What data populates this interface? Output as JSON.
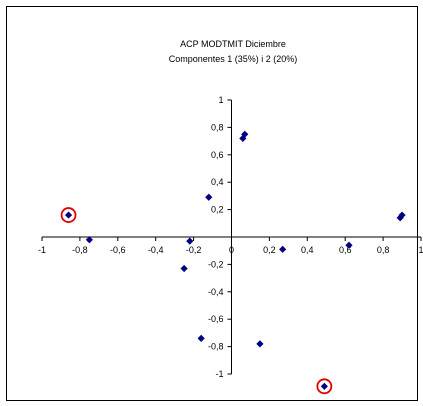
{
  "chart_data": {
    "type": "scatter",
    "title": "ACP MODTMIT Diciembre",
    "subtitle": "Componentes 1 (35%) i 2 (20%)",
    "xlabel": "",
    "ylabel": "",
    "xlim": [
      -1,
      1
    ],
    "ylim": [
      -1,
      1
    ],
    "x_ticks": [
      "-1",
      "-0,8",
      "-0,6",
      "-0,4",
      "-0,2",
      "0",
      "0,2",
      "0,4",
      "0,6",
      "0,8",
      "1"
    ],
    "y_ticks": [
      "-1",
      "-0,8",
      "-0,6",
      "-0,4",
      "-0,2",
      "0,2",
      "0,4",
      "0,6",
      "0,8",
      "1"
    ],
    "grid": false,
    "legend": "none",
    "marker_color": "#000080",
    "highlight_color": "#e00000",
    "points": [
      {
        "x": -0.86,
        "y": 0.16,
        "highlighted": true
      },
      {
        "x": -0.75,
        "y": -0.02,
        "highlighted": false
      },
      {
        "x": -0.25,
        "y": -0.23,
        "highlighted": false
      },
      {
        "x": -0.22,
        "y": -0.03,
        "highlighted": false
      },
      {
        "x": -0.16,
        "y": -0.74,
        "highlighted": false
      },
      {
        "x": -0.12,
        "y": 0.29,
        "highlighted": false
      },
      {
        "x": 0.06,
        "y": 0.72,
        "highlighted": false
      },
      {
        "x": 0.07,
        "y": 0.75,
        "highlighted": false
      },
      {
        "x": 0.15,
        "y": -0.78,
        "highlighted": false
      },
      {
        "x": 0.27,
        "y": -0.09,
        "highlighted": false
      },
      {
        "x": 0.49,
        "y": -1.09,
        "highlighted": true
      },
      {
        "x": 0.62,
        "y": -0.06,
        "highlighted": false
      },
      {
        "x": 0.89,
        "y": 0.14,
        "highlighted": false
      },
      {
        "x": 0.9,
        "y": 0.16,
        "highlighted": false
      }
    ]
  }
}
